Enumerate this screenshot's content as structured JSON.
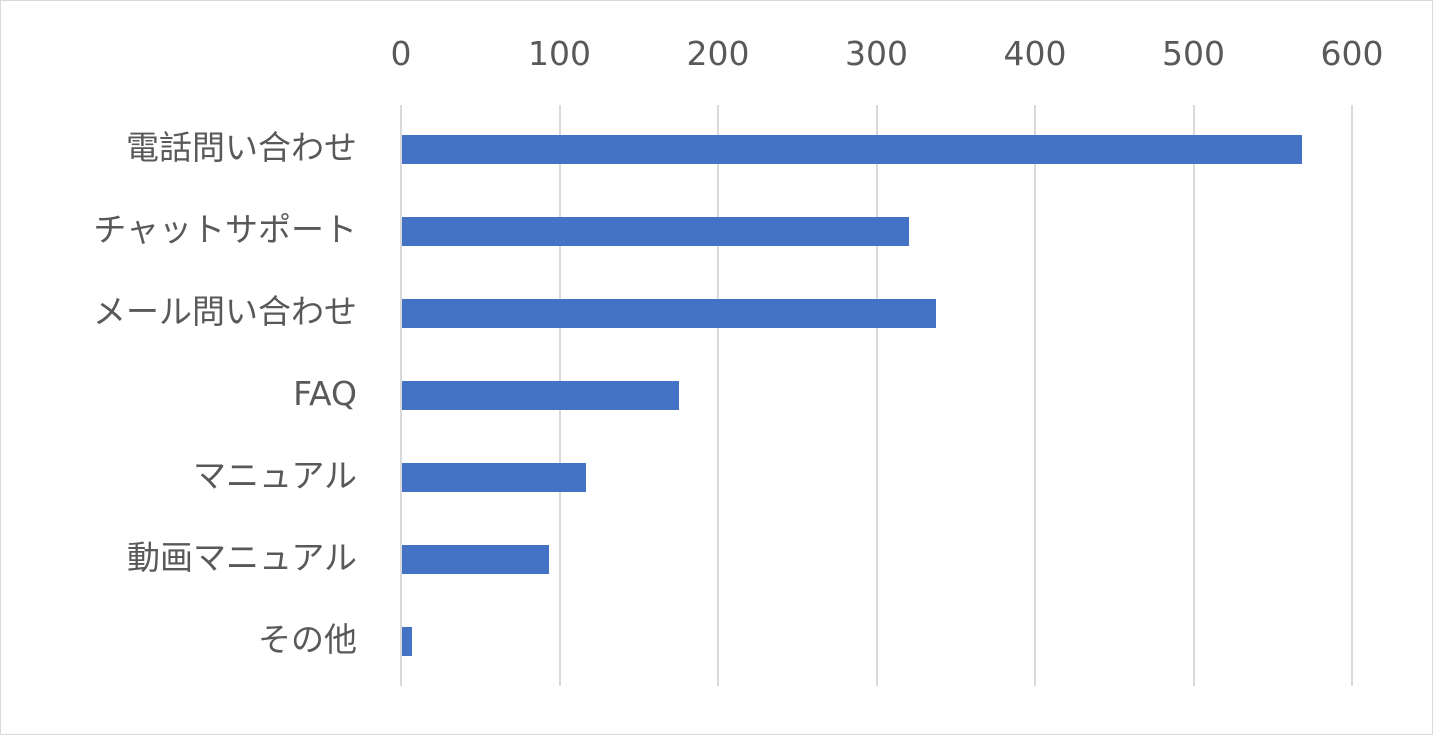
{
  "chart_data": {
    "type": "bar",
    "orientation": "horizontal",
    "title": "",
    "xlabel": "",
    "ylabel": "",
    "categories": [
      "電話問い合わせ",
      "チャットサポート",
      "メール問い合わせ",
      "FAQ",
      "マニュアル",
      "動画マニュアル",
      "その他"
    ],
    "values": [
      568,
      320,
      337,
      175,
      116,
      93,
      6
    ],
    "xlim": [
      0,
      600
    ],
    "xticks": [
      "0",
      "100",
      "200",
      "300",
      "400",
      "500",
      "600"
    ],
    "xaxis_position": "top",
    "grid": true,
    "legend": null,
    "bar_color": "#4472c4"
  }
}
